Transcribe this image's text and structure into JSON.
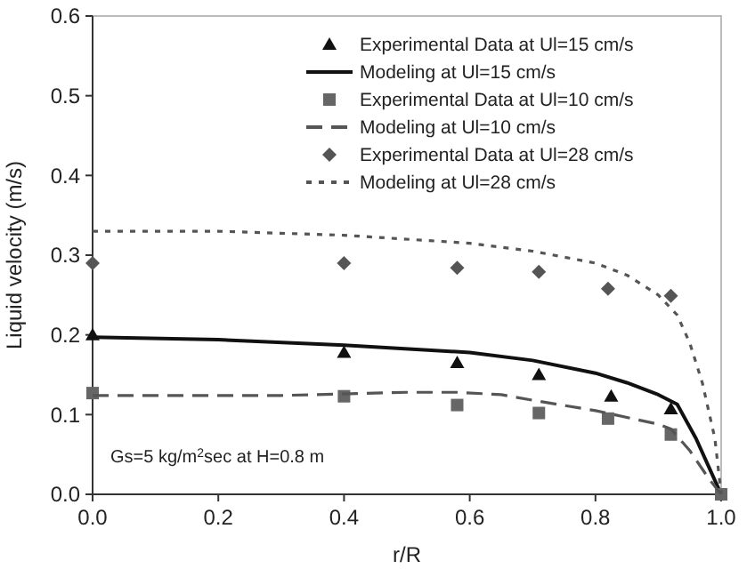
{
  "chart_data": {
    "type": "line",
    "xlabel": "r/R",
    "ylabel": "Liquid velocity (m/s)",
    "xlim": [
      0,
      1
    ],
    "ylim": [
      0,
      0.6
    ],
    "xticks": [
      {
        "value": 0,
        "label": "0.0"
      },
      0.2,
      0.4,
      0.6,
      0.8,
      {
        "value": 1,
        "label": "1.0"
      }
    ],
    "yticks": [
      {
        "value": 0,
        "label": "0.0"
      },
      0.1,
      0.2,
      0.3,
      0.4,
      0.5,
      0.6
    ],
    "grid": false,
    "legend": "top right",
    "annotations": [
      "Gs=5 kg/m$^{2}$sec at H=0.8 m"
    ],
    "series": [
      {
        "name": "Experimental Data at Ul=15 cm/s",
        "type": "scatter",
        "marker": "triangle",
        "color": "#111111",
        "x": [
          0,
          0.4,
          0.58,
          0.71,
          0.825,
          0.92
        ],
        "values": [
          0.2,
          0.178,
          0.165,
          0.15,
          0.123,
          0.107
        ]
      },
      {
        "name": "Modeling at Ul=15 cm/s",
        "line_style": "solid",
        "color": "#111111",
        "x": [
          0,
          0.2,
          0.4,
          0.6,
          0.7,
          0.8,
          0.85,
          0.9,
          0.93,
          0.96,
          0.98,
          1.0
        ],
        "values": [
          0.197,
          0.194,
          0.187,
          0.178,
          0.168,
          0.152,
          0.14,
          0.125,
          0.113,
          0.07,
          0.035,
          0
        ]
      },
      {
        "name": "Experimental Data at Ul=10 cm/s",
        "type": "scatter",
        "marker": "square",
        "color": "#666666",
        "x": [
          0,
          0.4,
          0.58,
          0.71,
          0.82,
          0.92,
          1.0
        ],
        "values": [
          0.127,
          0.123,
          0.112,
          0.102,
          0.095,
          0.075,
          0
        ]
      },
      {
        "name": "Modeling at Ul=10 cm/s",
        "line_style": "dashed",
        "color": "#555555",
        "x": [
          0,
          0.3,
          0.5,
          0.58,
          0.65,
          0.7,
          0.8,
          0.9,
          0.92,
          0.95,
          0.98,
          1.0
        ],
        "values": [
          0.124,
          0.124,
          0.128,
          0.128,
          0.125,
          0.118,
          0.105,
          0.088,
          0.082,
          0.055,
          0.02,
          0
        ]
      },
      {
        "name": "Experimental Data at Ul=28 cm/s",
        "type": "scatter",
        "marker": "diamond",
        "color": "#555555",
        "x": [
          0,
          0.4,
          0.58,
          0.71,
          0.82,
          0.92
        ],
        "values": [
          0.29,
          0.29,
          0.284,
          0.279,
          0.258,
          0.249
        ]
      },
      {
        "name": "Modeling at Ul=28 cm/s",
        "line_style": "dotted",
        "color": "#555555",
        "x": [
          0,
          0.2,
          0.4,
          0.6,
          0.7,
          0.8,
          0.85,
          0.9,
          0.93,
          0.95,
          0.97,
          0.99,
          1.0
        ],
        "values": [
          0.33,
          0.33,
          0.325,
          0.315,
          0.305,
          0.29,
          0.275,
          0.25,
          0.225,
          0.19,
          0.14,
          0.07,
          0
        ]
      }
    ]
  }
}
